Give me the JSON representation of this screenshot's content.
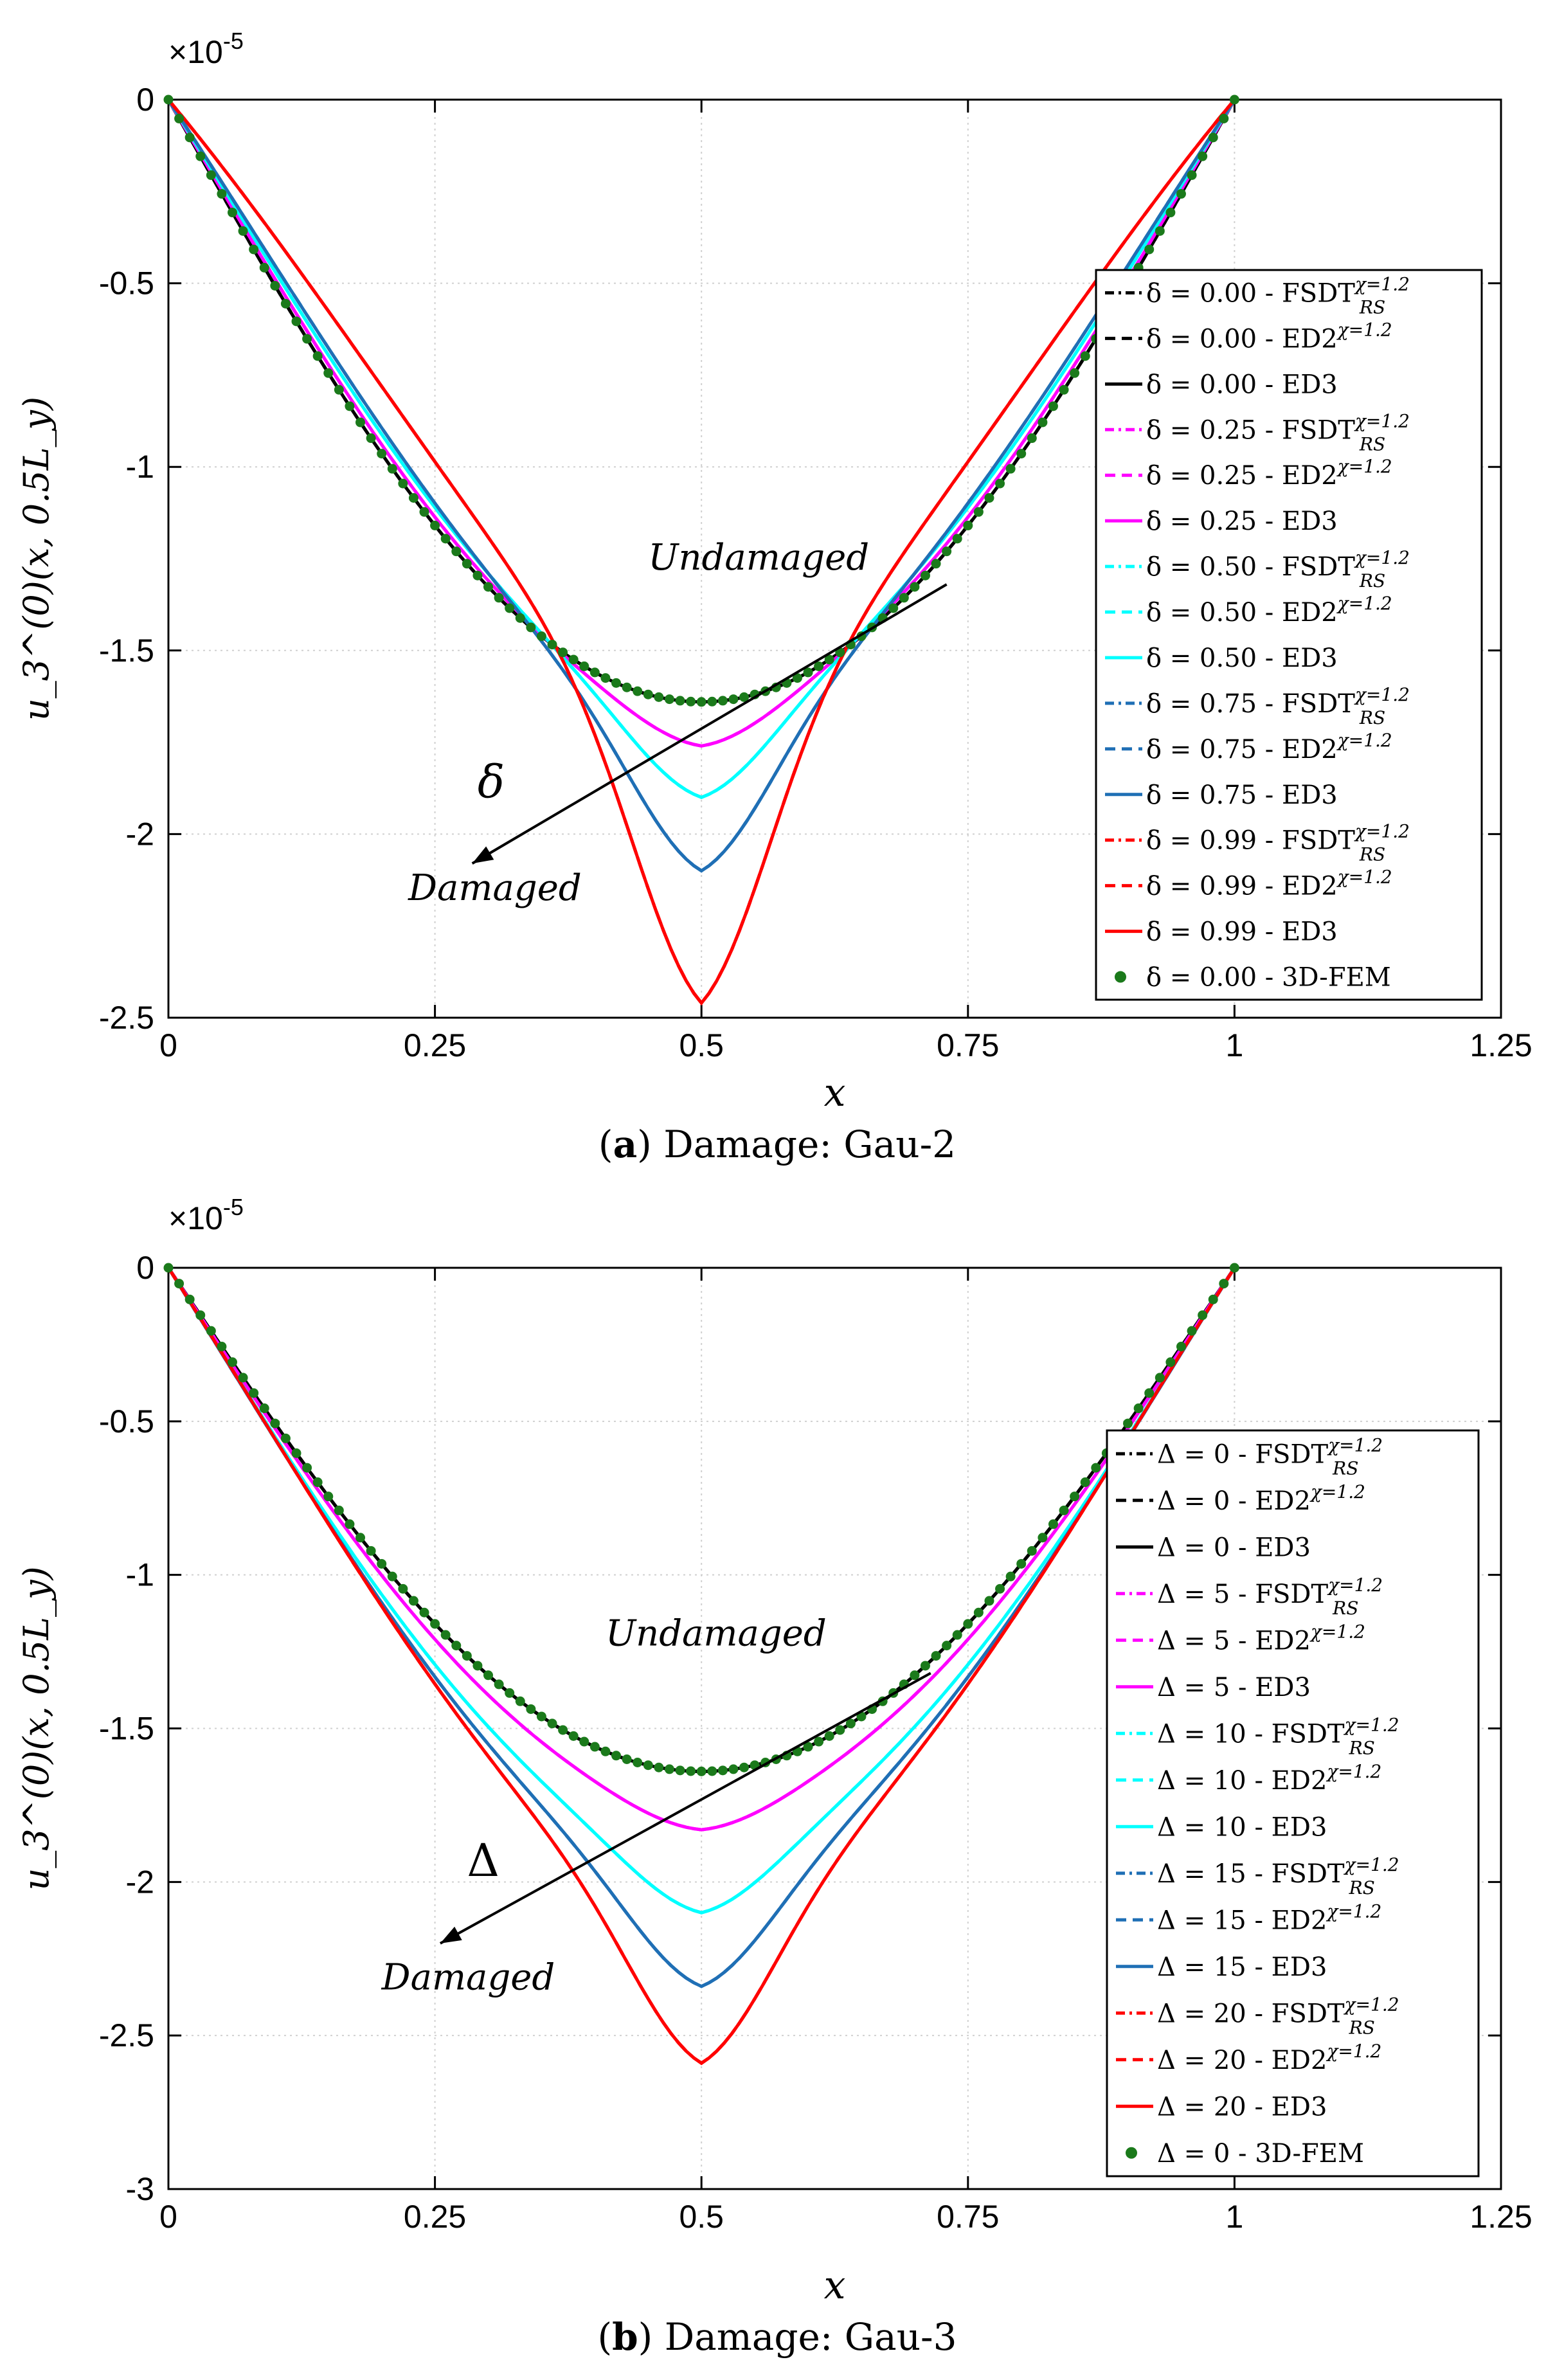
{
  "colors": {
    "black": "#000000",
    "magenta": "#ff00ff",
    "cyan": "#00ffff",
    "blue": "#1f6fb5",
    "red": "#ff0000",
    "green": "#1b7a1b",
    "grid": "#d0d0d0"
  },
  "chart_data": [
    {
      "type": "line",
      "caption_prefix": "a",
      "caption_text": ") Damage: Gau-2",
      "xlabel": "x",
      "ylabel": "u_3^(0)(x, 0.5L_y)",
      "exponent_label": "×10",
      "exponent_power": "-5",
      "xlim": [
        0,
        1.25
      ],
      "ylim": [
        -2.5,
        0
      ],
      "xticks": [
        0,
        0.25,
        0.5,
        0.75,
        1,
        1.25
      ],
      "xtick_labels": [
        "0",
        "0.25",
        "0.5",
        "0.75",
        "1",
        "1.25"
      ],
      "yticks": [
        0,
        -0.5,
        -1,
        -1.5,
        -2,
        -2.5
      ],
      "ytick_labels": [
        "0",
        "-0.5",
        "-1",
        "-1.5",
        "-2",
        "-2.5"
      ],
      "grid": true,
      "legend_position": "right",
      "annotation": {
        "top_label": "Undamaged",
        "bottom_label": "Damaged",
        "symbol": "δ",
        "arrow_from": [
          0.73,
          -1.32
        ],
        "arrow_to": [
          0.285,
          -2.08
        ],
        "top_label_pos": [
          0.45,
          -1.28
        ],
        "bottom_label_pos": [
          0.225,
          -2.18
        ],
        "symbol_pos": [
          0.29,
          -1.9
        ]
      },
      "series": [
        {
          "name": "δ = 0.00 - FSDT",
          "sup": "χ=1.2",
          "sub": "RS",
          "damage": 0.0,
          "peak": -1.64,
          "cusp": 0.0,
          "color": "black",
          "dash": "dashdot"
        },
        {
          "name": "δ = 0.00 - ED2",
          "sup": "χ=1.2",
          "sub": "",
          "damage": 0.0,
          "peak": -1.64,
          "cusp": 0.0,
          "color": "black",
          "dash": "dashed"
        },
        {
          "name": "δ = 0.00 - ED3",
          "sup": "",
          "sub": "",
          "damage": 0.0,
          "peak": -1.64,
          "cusp": 0.0,
          "color": "black",
          "dash": "solid"
        },
        {
          "name": "δ = 0.25 - FSDT",
          "sup": "χ=1.2",
          "sub": "RS",
          "damage": 0.25,
          "peak": -1.76,
          "cusp": 0.2,
          "color": "magenta",
          "dash": "dashdot"
        },
        {
          "name": "δ = 0.25 - ED2",
          "sup": "χ=1.2",
          "sub": "",
          "damage": 0.25,
          "peak": -1.76,
          "cusp": 0.2,
          "color": "magenta",
          "dash": "dashed"
        },
        {
          "name": "δ = 0.25 - ED3",
          "sup": "",
          "sub": "",
          "damage": 0.25,
          "peak": -1.76,
          "cusp": 0.2,
          "color": "magenta",
          "dash": "solid"
        },
        {
          "name": "δ = 0.50 - FSDT",
          "sup": "χ=1.2",
          "sub": "RS",
          "damage": 0.5,
          "peak": -1.9,
          "cusp": 0.4,
          "color": "cyan",
          "dash": "dashdot"
        },
        {
          "name": "δ = 0.50 - ED2",
          "sup": "χ=1.2",
          "sub": "",
          "damage": 0.5,
          "peak": -1.9,
          "cusp": 0.4,
          "color": "cyan",
          "dash": "dashed"
        },
        {
          "name": "δ = 0.50 - ED3",
          "sup": "",
          "sub": "",
          "damage": 0.5,
          "peak": -1.9,
          "cusp": 0.4,
          "color": "cyan",
          "dash": "solid"
        },
        {
          "name": "δ = 0.75 - FSDT",
          "sup": "χ=1.2",
          "sub": "RS",
          "damage": 0.75,
          "peak": -2.1,
          "cusp": 0.6,
          "color": "blue",
          "dash": "dashdot"
        },
        {
          "name": "δ = 0.75 - ED2",
          "sup": "χ=1.2",
          "sub": "",
          "damage": 0.75,
          "peak": -2.1,
          "cusp": 0.6,
          "color": "blue",
          "dash": "dashed"
        },
        {
          "name": "δ = 0.75 - ED3",
          "sup": "",
          "sub": "",
          "damage": 0.75,
          "peak": -2.1,
          "cusp": 0.6,
          "color": "blue",
          "dash": "solid"
        },
        {
          "name": "δ = 0.99 - FSDT",
          "sup": "χ=1.2",
          "sub": "RS",
          "damage": 0.99,
          "peak": -2.46,
          "cusp": 1.0,
          "color": "red",
          "dash": "dashdot"
        },
        {
          "name": "δ = 0.99 - ED2",
          "sup": "χ=1.2",
          "sub": "",
          "damage": 0.99,
          "peak": -2.46,
          "cusp": 1.0,
          "color": "red",
          "dash": "dashed"
        },
        {
          "name": "δ = 0.99 - ED3",
          "sup": "",
          "sub": "",
          "damage": 0.99,
          "peak": -2.46,
          "cusp": 1.0,
          "color": "red",
          "dash": "solid"
        },
        {
          "name": "δ = 0.00 - 3D-FEM",
          "sup": "",
          "sub": "",
          "damage": 0.0,
          "peak": -1.64,
          "cusp": 0.0,
          "color": "green",
          "dash": "markers"
        }
      ]
    },
    {
      "type": "line",
      "caption_prefix": "b",
      "caption_text": ") Damage: Gau-3",
      "xlabel": "x",
      "ylabel": "u_3^(0)(x, 0.5L_y)",
      "exponent_label": "×10",
      "exponent_power": "-5",
      "xlim": [
        0,
        1.25
      ],
      "ylim": [
        -3,
        0
      ],
      "xticks": [
        0,
        0.25,
        0.5,
        0.75,
        1,
        1.25
      ],
      "xtick_labels": [
        "0",
        "0.25",
        "0.5",
        "0.75",
        "1",
        "1.25"
      ],
      "yticks": [
        0,
        -0.5,
        -1,
        -1.5,
        -2,
        -2.5,
        -3
      ],
      "ytick_labels": [
        "0",
        "-0.5",
        "-1",
        "-1.5",
        "-2",
        "-2.5",
        "-3"
      ],
      "grid": true,
      "legend_position": "right",
      "annotation": {
        "top_label": "Undamaged",
        "bottom_label": "Damaged",
        "symbol": "Δ",
        "arrow_from": [
          0.715,
          -1.32
        ],
        "arrow_to": [
          0.255,
          -2.2
        ],
        "top_label_pos": [
          0.41,
          -1.23
        ],
        "bottom_label_pos": [
          0.2,
          -2.35
        ],
        "symbol_pos": [
          0.28,
          -1.98
        ]
      },
      "series": [
        {
          "name": "Δ = 0  - FSDT",
          "sup": "χ=1.2",
          "sub": "RS",
          "damage": 0,
          "peak": -1.64,
          "cusp": 0.0,
          "color": "black",
          "dash": "dashdot"
        },
        {
          "name": "Δ = 0  - ED2",
          "sup": "χ=1.2",
          "sub": "",
          "damage": 0,
          "peak": -1.64,
          "cusp": 0.0,
          "color": "black",
          "dash": "dashed"
        },
        {
          "name": "Δ = 0  - ED3",
          "sup": "",
          "sub": "",
          "damage": 0,
          "peak": -1.64,
          "cusp": 0.0,
          "color": "black",
          "dash": "solid"
        },
        {
          "name": "Δ = 5  - FSDT",
          "sup": "χ=1.2",
          "sub": "RS",
          "damage": 5,
          "peak": -1.83,
          "cusp": 0.15,
          "color": "magenta",
          "dash": "dashdot"
        },
        {
          "name": "Δ = 5  - ED2",
          "sup": "χ=1.2",
          "sub": "",
          "damage": 5,
          "peak": -1.83,
          "cusp": 0.15,
          "color": "magenta",
          "dash": "dashed"
        },
        {
          "name": "Δ = 5  - ED3",
          "sup": "",
          "sub": "",
          "damage": 5,
          "peak": -1.83,
          "cusp": 0.15,
          "color": "magenta",
          "dash": "solid"
        },
        {
          "name": "Δ = 10  - FSDT",
          "sup": "χ=1.2",
          "sub": "RS",
          "damage": 10,
          "peak": -2.1,
          "cusp": 0.3,
          "color": "cyan",
          "dash": "dashdot"
        },
        {
          "name": "Δ = 10  - ED2",
          "sup": "χ=1.2",
          "sub": "",
          "damage": 10,
          "peak": -2.1,
          "cusp": 0.3,
          "color": "cyan",
          "dash": "dashed"
        },
        {
          "name": "Δ = 10  - ED3",
          "sup": "",
          "sub": "",
          "damage": 10,
          "peak": -2.1,
          "cusp": 0.3,
          "color": "cyan",
          "dash": "solid"
        },
        {
          "name": "Δ = 15  - FSDT",
          "sup": "χ=1.2",
          "sub": "RS",
          "damage": 15,
          "peak": -2.34,
          "cusp": 0.45,
          "color": "blue",
          "dash": "dashdot"
        },
        {
          "name": "Δ = 15  - ED2",
          "sup": "χ=1.2",
          "sub": "",
          "damage": 15,
          "peak": -2.34,
          "cusp": 0.45,
          "color": "blue",
          "dash": "dashed"
        },
        {
          "name": "Δ = 15  - ED3",
          "sup": "",
          "sub": "",
          "damage": 15,
          "peak": -2.34,
          "cusp": 0.45,
          "color": "blue",
          "dash": "solid"
        },
        {
          "name": "Δ = 20  - FSDT",
          "sup": "χ=1.2",
          "sub": "RS",
          "damage": 20,
          "peak": -2.59,
          "cusp": 0.6,
          "color": "red",
          "dash": "dashdot"
        },
        {
          "name": "Δ = 20  - ED2",
          "sup": "χ=1.2",
          "sub": "",
          "damage": 20,
          "peak": -2.59,
          "cusp": 0.6,
          "color": "red",
          "dash": "dashed"
        },
        {
          "name": "Δ = 20  - ED3",
          "sup": "",
          "sub": "",
          "damage": 20,
          "peak": -2.59,
          "cusp": 0.6,
          "color": "red",
          "dash": "solid"
        },
        {
          "name": "Δ = 0  - 3D-FEM",
          "sup": "",
          "sub": "",
          "damage": 0,
          "peak": -1.64,
          "cusp": 0.0,
          "color": "green",
          "dash": "markers"
        }
      ]
    }
  ]
}
